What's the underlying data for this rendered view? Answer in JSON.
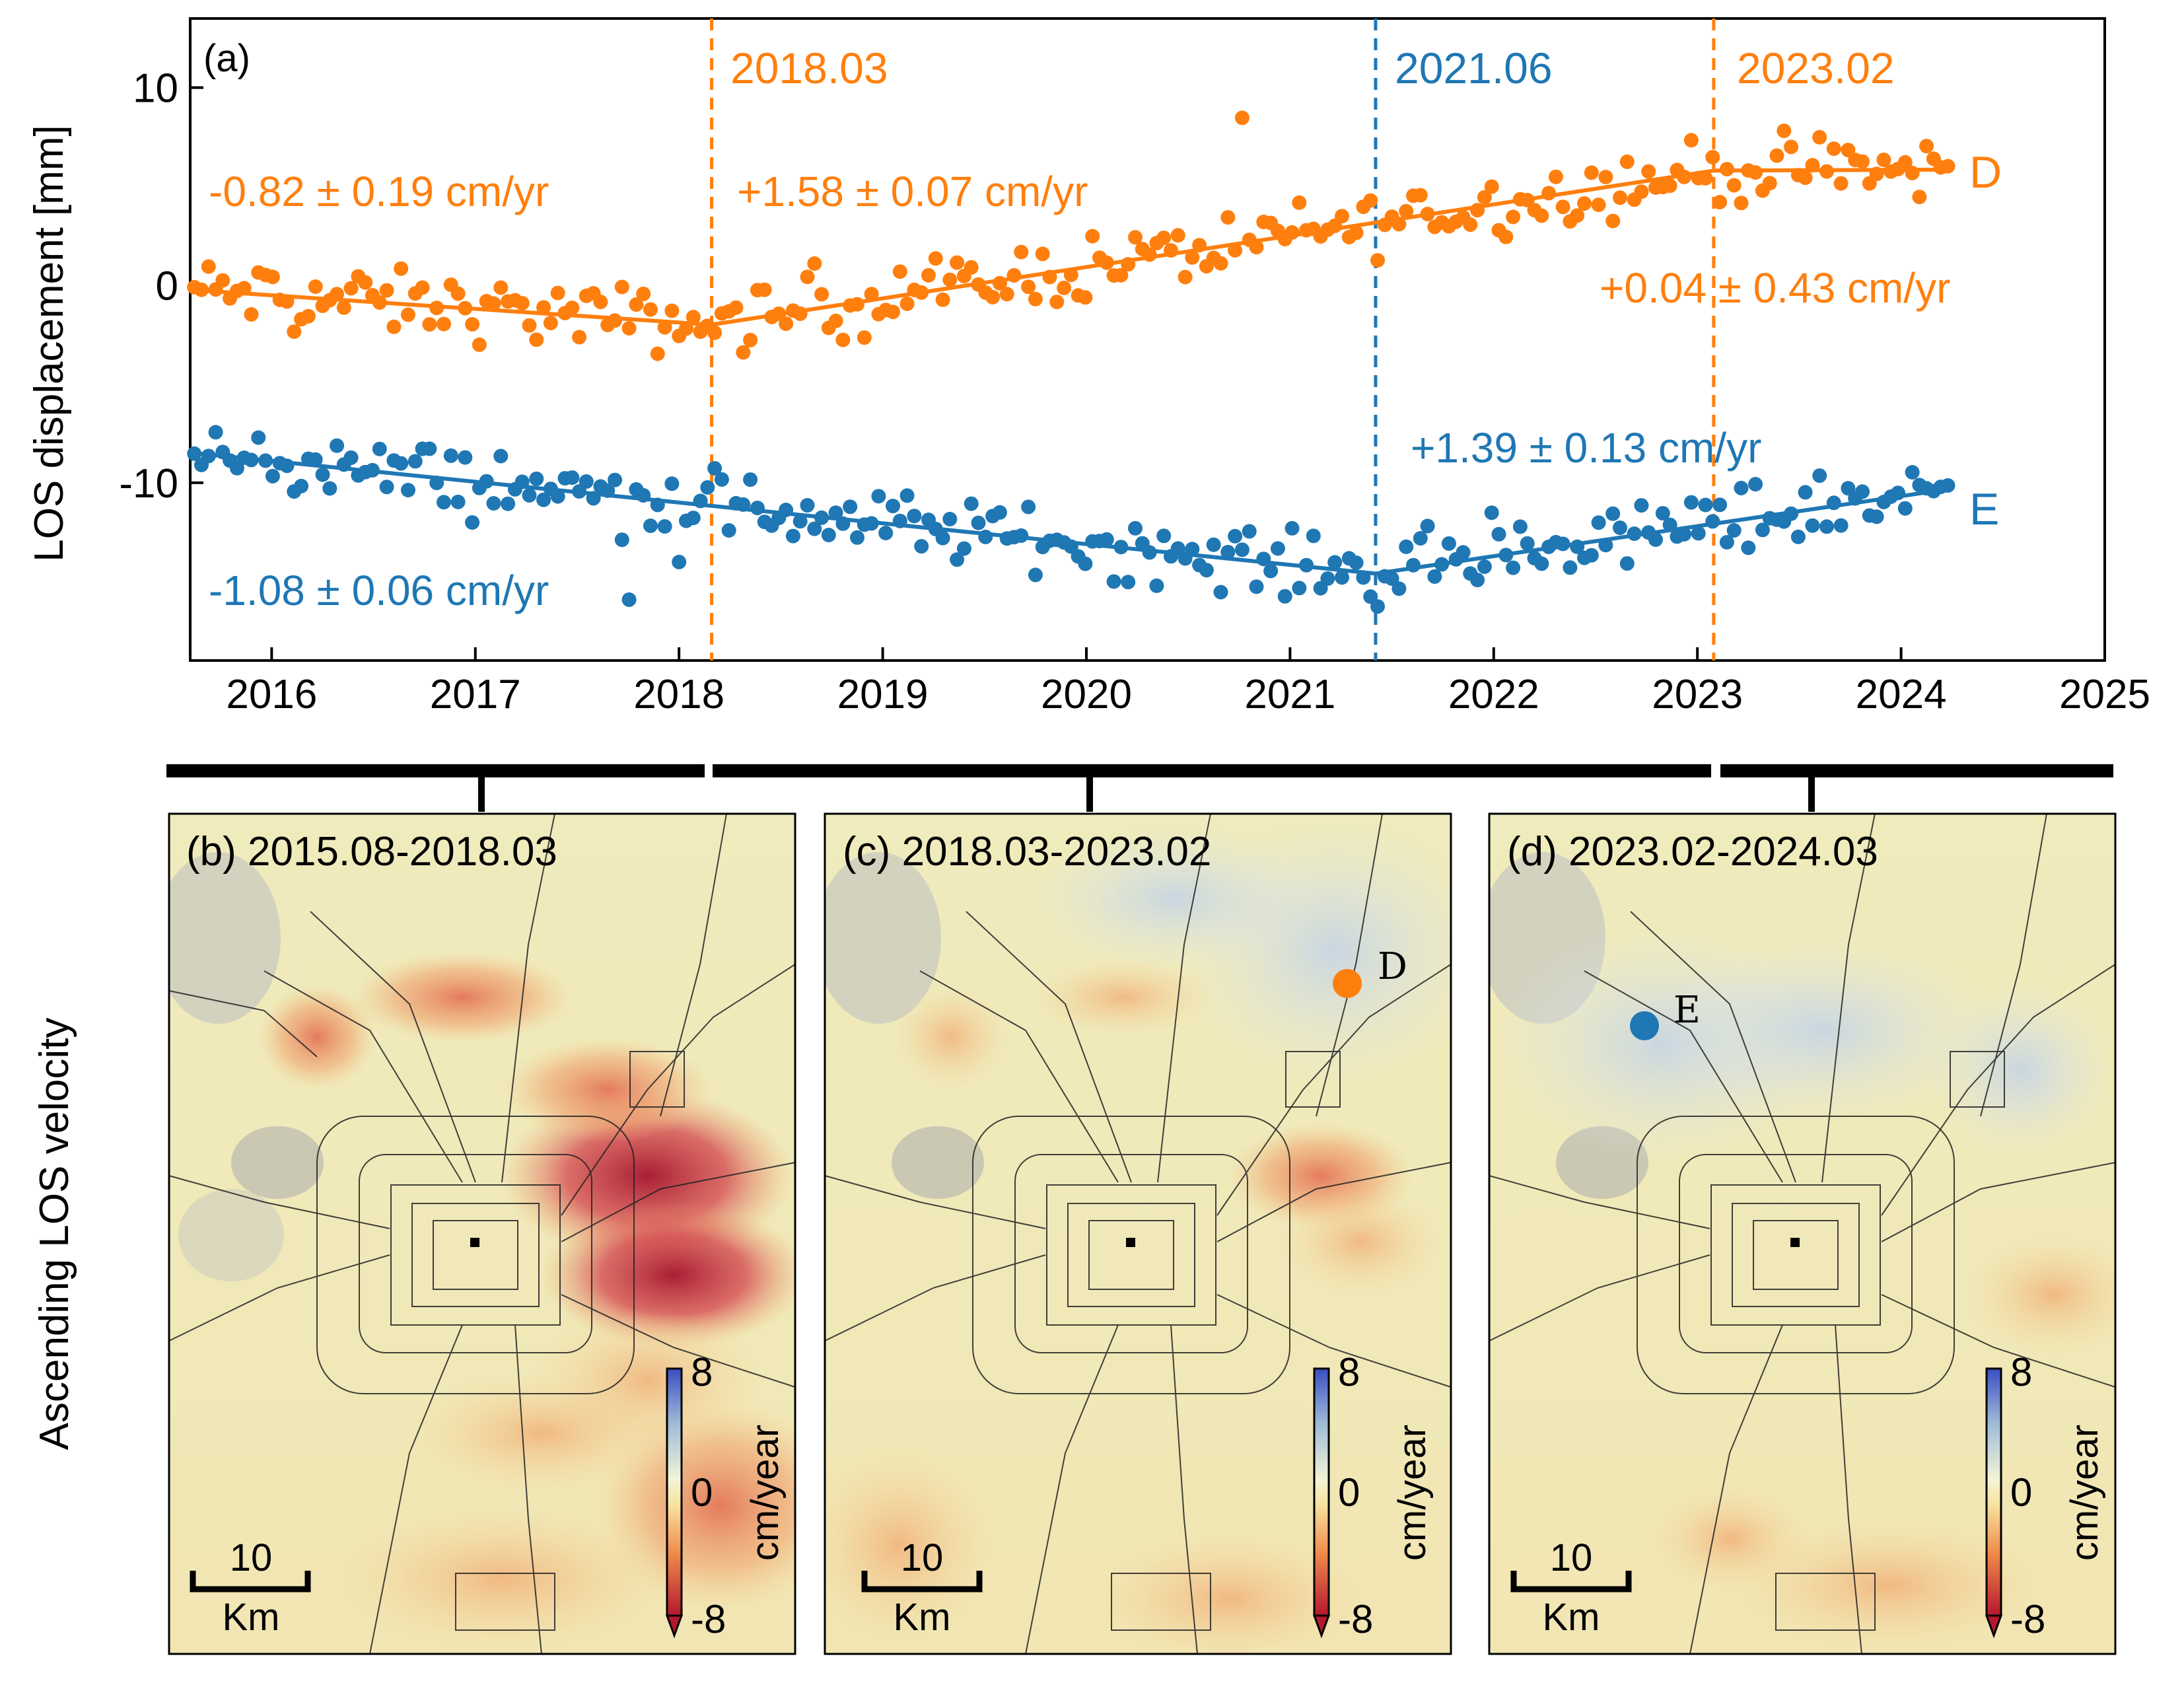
{
  "colors": {
    "orange": "#ff7f0e",
    "blue": "#1f77b4",
    "axis": "#000000"
  },
  "chart_data": [
    {
      "type": "scatter",
      "panel_label": "(a)",
      "ylabel": "LOS displacement [mm]",
      "xlabel": "",
      "xlim": [
        2015.6,
        2025.0
      ],
      "ylim": [
        -19.0,
        13.5
      ],
      "grid": false,
      "x_ticks": [
        2016,
        2017,
        2018,
        2019,
        2020,
        2021,
        2022,
        2023,
        2024,
        2025
      ],
      "y_ticks": [
        10,
        0,
        -10
      ],
      "breakpoints": [
        {
          "label": "2018.03",
          "x": 2018.16,
          "series": "D"
        },
        {
          "label": "2021.06",
          "x": 2021.42,
          "series": "E"
        },
        {
          "label": "2023.02",
          "x": 2023.08,
          "series": "D"
        }
      ],
      "series": [
        {
          "name": "D",
          "fit_segments": [
            {
              "x": [
                2015.62,
                2018.16
              ],
              "y": [
                -0.25,
                -2.0
              ]
            },
            {
              "x": [
                2018.16,
                2023.08
              ],
              "y": [
                -2.0,
                5.8
              ]
            },
            {
              "x": [
                2023.08,
                2024.25
              ],
              "y": [
                5.8,
                5.85
              ]
            }
          ],
          "rates": [
            {
              "text": "-0.82 ± 0.19 cm/yr"
            },
            {
              "text": "+1.58 ± 0.07 cm/yr"
            },
            {
              "text": "+0.04 ± 0.43 cm/yr"
            }
          ]
        },
        {
          "name": "E",
          "fit_segments": [
            {
              "x": [
                2015.62,
                2021.42
              ],
              "y": [
                -8.5,
                -14.6
              ]
            },
            {
              "x": [
                2021.42,
                2024.25
              ],
              "y": [
                -14.6,
                -10.3
              ]
            }
          ],
          "rates": [
            {
              "text": "-1.08 ± 0.06 cm/yr"
            },
            {
              "text": "+1.39 ± 0.13 cm/yr"
            }
          ]
        }
      ]
    }
  ],
  "maps": {
    "row_label": "Ascending LOS velocity",
    "panels": [
      {
        "title": "(b) 2015.08-2018.03"
      },
      {
        "title": "(c) 2018.03-2023.02",
        "marker": "D"
      },
      {
        "title": "(d) 2023.02-2024.03",
        "marker": "E"
      }
    ],
    "colorbar": {
      "label": "cm/year",
      "max": "8",
      "mid": "0",
      "min": "-8"
    },
    "scalebar": {
      "value": "10",
      "unit": "Km"
    }
  }
}
